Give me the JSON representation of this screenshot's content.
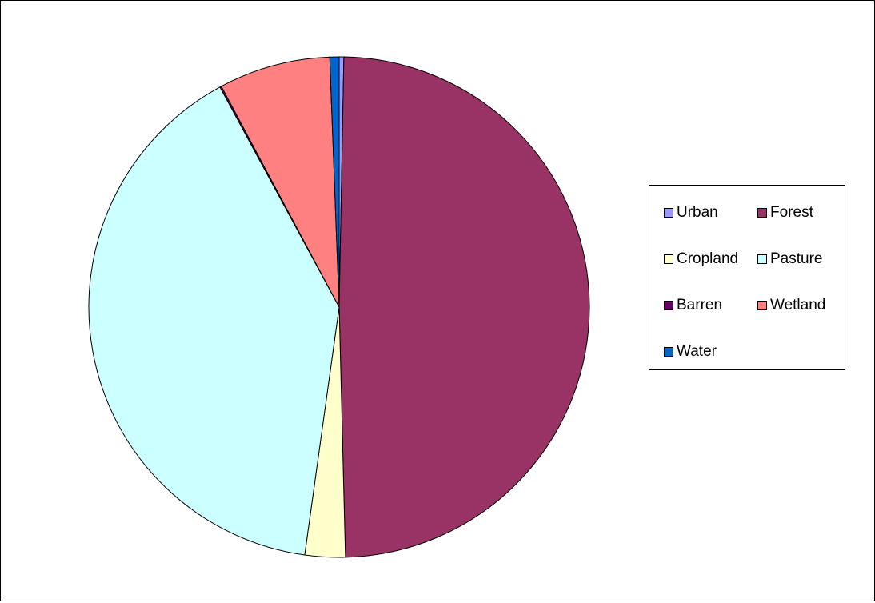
{
  "chart_data": {
    "type": "pie",
    "title": "",
    "categories": [
      "Urban",
      "Forest",
      "Cropland",
      "Pasture",
      "Barren",
      "Wetland",
      "Water"
    ],
    "values": [
      0.3,
      49.3,
      2.6,
      39.9,
      0.1,
      7.2,
      0.6
    ],
    "colors": [
      "#9999FF",
      "#993366",
      "#FFFFCC",
      "#CCFFFF",
      "#660066",
      "#FF8080",
      "#0066CC"
    ],
    "start_angle_deg": 0,
    "direction": "clockwise",
    "legend_position": "right"
  }
}
